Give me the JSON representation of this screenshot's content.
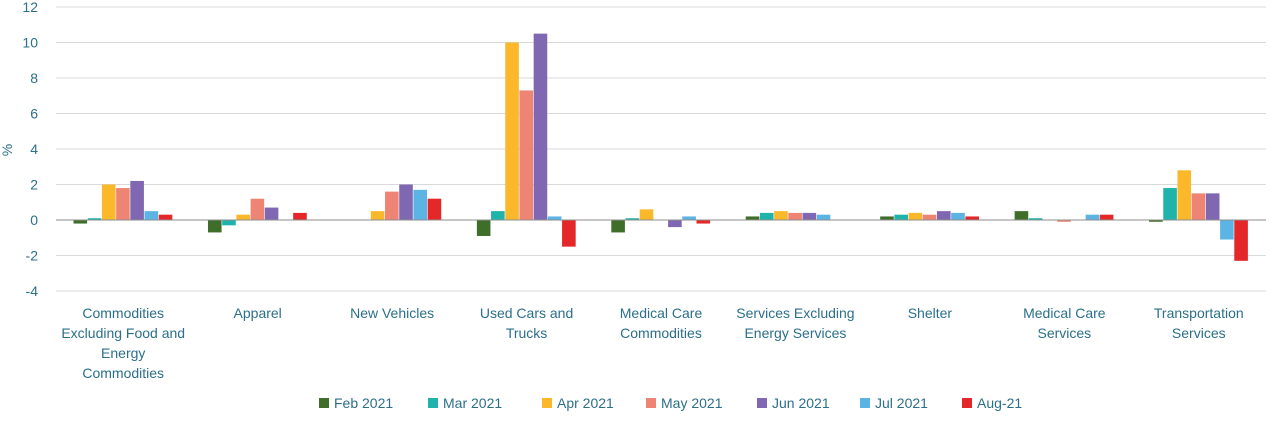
{
  "chart_data": {
    "type": "bar",
    "title": "",
    "xlabel": "",
    "ylabel": "%",
    "ylim": [
      -4,
      12
    ],
    "yticks": [
      -4,
      -2,
      0,
      2,
      4,
      6,
      8,
      10,
      12
    ],
    "grid": true,
    "legend_position": "bottom",
    "categories": [
      [
        "Commodities",
        "Excluding Food and",
        "Energy",
        "Commodities"
      ],
      [
        "Apparel"
      ],
      [
        "New Vehicles"
      ],
      [
        "Used Cars and",
        "Trucks"
      ],
      [
        "Medical Care",
        "Commodities"
      ],
      [
        "Services Excluding",
        "Energy Services"
      ],
      [
        "Shelter"
      ],
      [
        "Medical Care",
        "Services"
      ],
      [
        "Transportation",
        "Services"
      ]
    ],
    "series": [
      {
        "name": "Feb 2021",
        "color": "#3f6e2a",
        "values": [
          -0.2,
          -0.7,
          0.0,
          -0.9,
          -0.7,
          0.2,
          0.2,
          0.5,
          -0.1
        ]
      },
      {
        "name": "Mar 2021",
        "color": "#1fb3ac",
        "values": [
          0.1,
          -0.3,
          0.0,
          0.5,
          0.1,
          0.4,
          0.3,
          0.1,
          1.8
        ]
      },
      {
        "name": "Apr 2021",
        "color": "#fbb82b",
        "values": [
          2.0,
          0.3,
          0.5,
          10.0,
          0.6,
          0.5,
          0.4,
          0.0,
          2.8
        ]
      },
      {
        "name": "May 2021",
        "color": "#ee8574",
        "values": [
          1.8,
          1.2,
          1.6,
          7.3,
          0.0,
          0.4,
          0.3,
          -0.1,
          1.5
        ]
      },
      {
        "name": "Jun 2021",
        "color": "#7f68b1",
        "values": [
          2.2,
          0.7,
          2.0,
          10.5,
          -0.4,
          0.4,
          0.5,
          0.0,
          1.5
        ]
      },
      {
        "name": "Jul 2021",
        "color": "#5cb4e5",
        "values": [
          0.5,
          0.0,
          1.7,
          0.2,
          0.2,
          0.3,
          0.4,
          0.3,
          -1.1
        ]
      },
      {
        "name": "Aug-21",
        "color": "#e42728",
        "values": [
          0.3,
          0.4,
          1.2,
          -1.5,
          -0.2,
          0.0,
          0.2,
          0.3,
          -2.3
        ]
      }
    ]
  }
}
